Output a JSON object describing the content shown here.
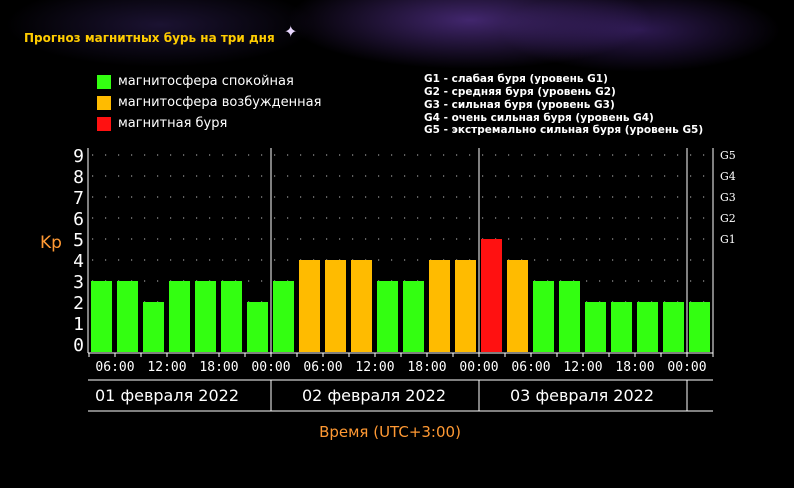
{
  "title": "Прогноз магнитных бурь на три дня",
  "legend": [
    {
      "label": "магнитосфера спокойная",
      "color": "#33ff11"
    },
    {
      "label": "магнитосфера возбужденная",
      "color": "#ffbb00"
    },
    {
      "label": "магнитная буря",
      "color": "#ff1111"
    }
  ],
  "g_levels": [
    "G1 - слабая буря (уровень G1)",
    "G2 - средняя буря (уровень G2)",
    "G3 - сильная буря (уровень G3)",
    "G4 - очень сильная буря (уровень G4)",
    "G5 - экстремально сильная буря (уровень G5)"
  ],
  "chart_data": {
    "type": "bar",
    "ylabel": "Kp",
    "xlabel": "Время (UTC+3:00)",
    "ylim": [
      0,
      9
    ],
    "yticks": [
      "0",
      "1",
      "2",
      "3",
      "4",
      "5",
      "6",
      "7",
      "8",
      "9"
    ],
    "right_ticks": [
      {
        "label": "G1",
        "value": 5
      },
      {
        "label": "G2",
        "value": 6
      },
      {
        "label": "G3",
        "value": 7
      },
      {
        "label": "G4",
        "value": 8
      },
      {
        "label": "G5",
        "value": 9
      }
    ],
    "x_ticks": [
      "06:00",
      "12:00",
      "18:00",
      "00:00",
      "06:00",
      "12:00",
      "18:00",
      "00:00",
      "06:00",
      "12:00",
      "18:00",
      "00:00"
    ],
    "days": [
      "01 февраля 2022",
      "02 февраля 2022",
      "03 февраля 2022"
    ],
    "values": [
      3,
      3,
      2,
      3,
      3,
      3,
      2,
      3,
      4,
      4,
      4,
      3,
      3,
      4,
      4,
      5,
      4,
      3,
      3,
      2,
      2,
      2,
      2,
      2
    ],
    "levels": [
      "quiet",
      "quiet",
      "quiet",
      "quiet",
      "quiet",
      "quiet",
      "quiet",
      "quiet",
      "active",
      "active",
      "active",
      "quiet",
      "quiet",
      "active",
      "active",
      "storm",
      "active",
      "quiet",
      "quiet",
      "quiet",
      "quiet",
      "quiet",
      "quiet",
      "quiet"
    ],
    "colors": {
      "quiet": "#33ff11",
      "active": "#ffbb00",
      "storm": "#ff1111"
    },
    "grid": true
  }
}
